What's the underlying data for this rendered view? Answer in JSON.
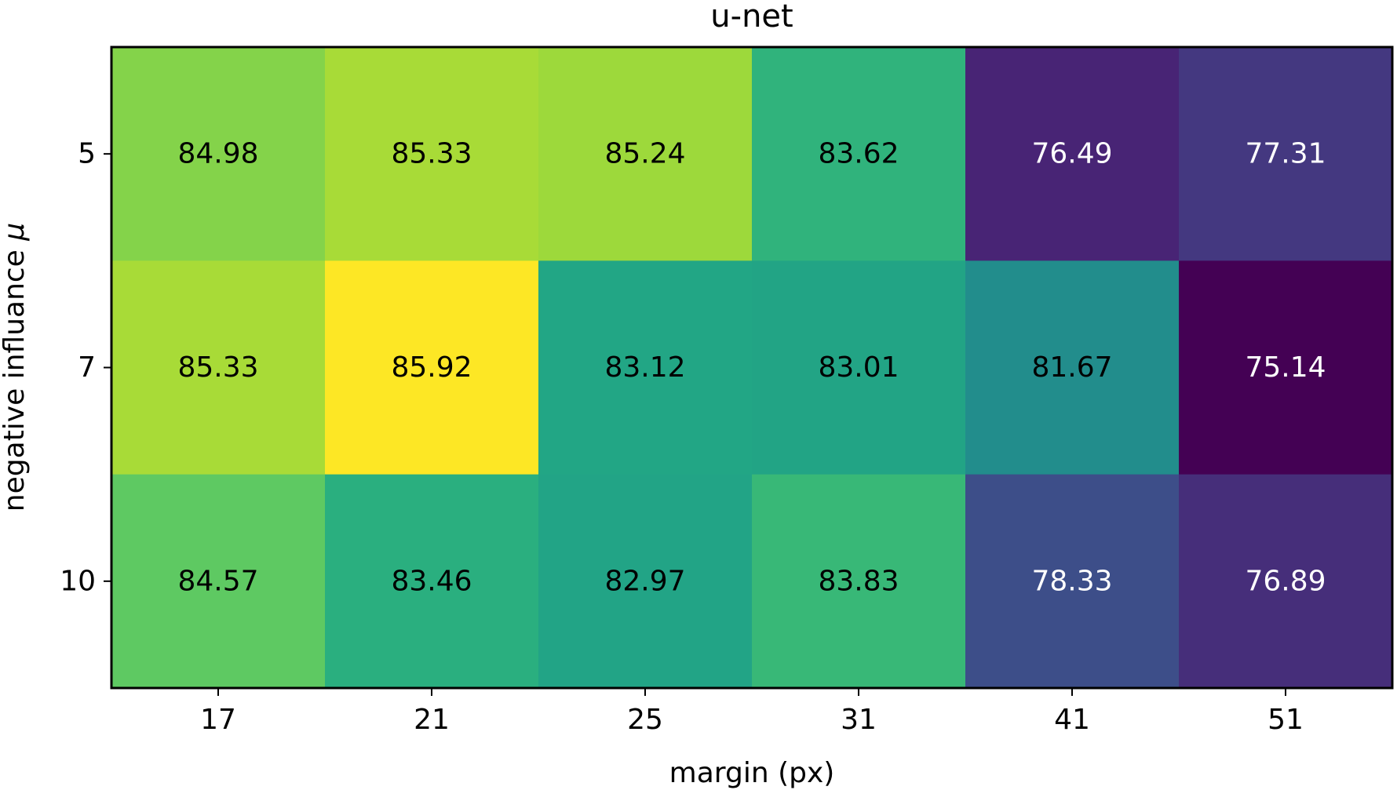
{
  "chart_data": {
    "type": "heatmap",
    "title": "u-net",
    "xlabel": "margin (px)",
    "ylabel_text": "negative influance ",
    "ylabel_symbol": "μ",
    "x_categories": [
      "17",
      "21",
      "25",
      "31",
      "41",
      "51"
    ],
    "y_categories": [
      "5",
      "7",
      "10"
    ],
    "values": [
      [
        84.98,
        85.33,
        85.24,
        83.62,
        76.49,
        77.31
      ],
      [
        85.33,
        85.92,
        83.12,
        83.01,
        81.67,
        75.14
      ],
      [
        84.57,
        83.46,
        82.97,
        83.83,
        78.33,
        76.89
      ]
    ],
    "value_labels": [
      [
        "84.98",
        "85.33",
        "85.24",
        "83.62",
        "76.49",
        "77.31"
      ],
      [
        "85.33",
        "85.92",
        "83.12",
        "83.01",
        "81.67",
        "75.14"
      ],
      [
        "84.57",
        "83.46",
        "82.97",
        "83.83",
        "78.33",
        "76.89"
      ]
    ],
    "colormap": "viridis",
    "colorbar": false,
    "grid": false,
    "legend": "none"
  }
}
